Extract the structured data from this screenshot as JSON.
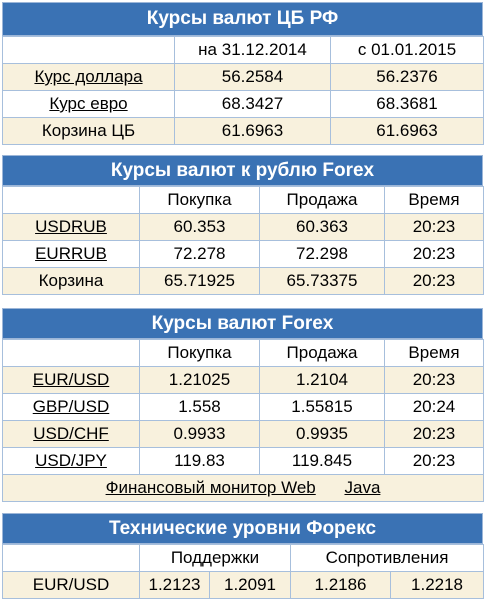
{
  "cb": {
    "title": "Курсы валют ЦБ РФ",
    "col1": "на 31.12.2014",
    "col2": "с 01.01.2015",
    "rows": [
      {
        "label": "Курс доллара",
        "v1": "56.2584",
        "v2": "56.2376"
      },
      {
        "label": "Курс евро",
        "v1": "68.3427",
        "v2": "68.3681"
      },
      {
        "label": "Корзина ЦБ",
        "v1": "61.6963",
        "v2": "61.6963"
      }
    ]
  },
  "forex_rub": {
    "title": "Курсы валют к рублю Forex",
    "h_buy": "Покупка",
    "h_sell": "Продажа",
    "h_time": "Время",
    "rows": [
      {
        "label": "USDRUB",
        "buy": "60.353",
        "sell": "60.363",
        "time": "20:23"
      },
      {
        "label": "EURRUB",
        "buy": "72.278",
        "sell": "72.298",
        "time": "20:23"
      },
      {
        "label": "Корзина",
        "buy": "65.71925",
        "sell": "65.73375",
        "time": "20:23"
      }
    ]
  },
  "forex": {
    "title": "Курсы валют Forex",
    "h_buy": "Покупка",
    "h_sell": "Продажа",
    "h_time": "Время",
    "rows": [
      {
        "label": "EUR/USD",
        "buy": "1.21025",
        "sell": "1.2104",
        "time": "20:23"
      },
      {
        "label": "GBP/USD",
        "buy": "1.558",
        "sell": "1.55815",
        "time": "20:24"
      },
      {
        "label": "USD/CHF",
        "buy": "0.9933",
        "sell": "0.9935",
        "time": "20:23"
      },
      {
        "label": "USD/JPY",
        "buy": "119.83",
        "sell": "119.845",
        "time": "20:23"
      }
    ],
    "footer_link1": "Финансовый монитор Web",
    "footer_link2": "Java"
  },
  "tech": {
    "title": "Технические уровни Форекс",
    "h_support": "Поддержки",
    "h_resist": "Сопротивления",
    "row": {
      "label": "EUR/USD",
      "s1": "1.2123",
      "s2": "1.2091",
      "r1": "1.2186",
      "r2": "1.2218"
    }
  }
}
